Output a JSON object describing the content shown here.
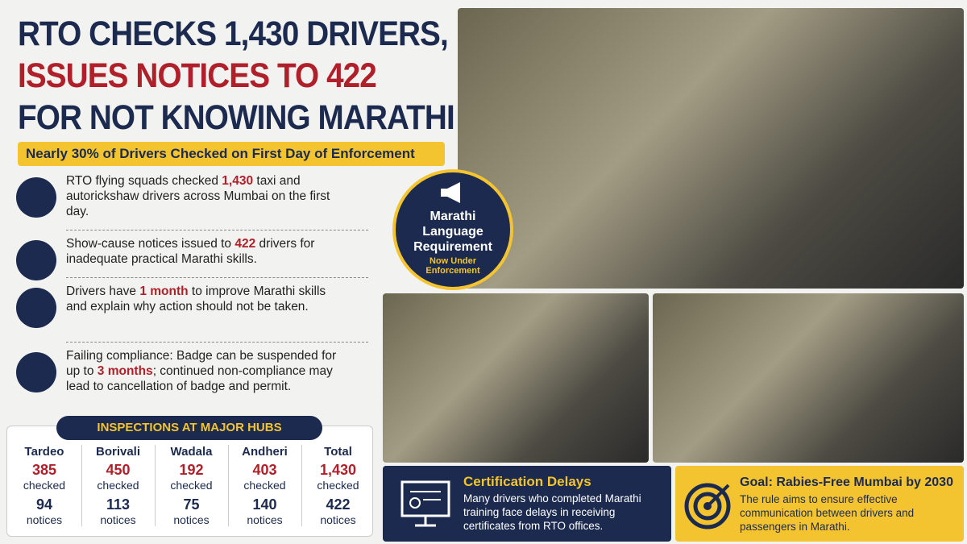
{
  "header": {
    "title_lines": [
      "RTO CHECKS 1,430 DRIVERS,",
      "ISSUES NOTICES TO 422",
      "FOR NOT KNOWING MARATHI"
    ],
    "subtitle": "Nearly 30% of Drivers Checked on First Day of Enforcement"
  },
  "points": [
    {
      "before": "RTO flying squads checked ",
      "highlight": "1,430",
      "after": " taxi and autorickshaw drivers across Mumbai on the first day."
    },
    {
      "before": "Show-cause notices issued to ",
      "highlight": "422",
      "after": " drivers for inadequate practical Marathi skills."
    },
    {
      "before": "Drivers have ",
      "highlight": "1 month",
      "after": " to improve Marathi skills and explain why action should not be taken."
    },
    {
      "before": "Failing compliance: Badge can be suspended for up to ",
      "highlight": "3 months",
      "after": "; continued non-compliance may lead to cancellation of badge and permit."
    }
  ],
  "badge": {
    "title": "Marathi Language Requirement",
    "subtitle": "Now Under Enforcement"
  },
  "hubs": {
    "title": "INSPECTIONS AT MAJOR HUBS",
    "items": [
      {
        "name": "Tardeo",
        "checked": "385",
        "checked_label": "checked",
        "notices": "94",
        "notices_label": "notices"
      },
      {
        "name": "Borivali",
        "checked": "450",
        "checked_label": "checked",
        "notices": "113",
        "notices_label": "notices"
      },
      {
        "name": "Wadala",
        "checked": "192",
        "checked_label": "checked",
        "notices": "75",
        "notices_label": "notices"
      },
      {
        "name": "Andheri",
        "checked": "403",
        "checked_label": "checked",
        "notices": "140",
        "notices_label": "notices"
      },
      {
        "name": "Total",
        "checked": "1,430",
        "checked_label": "checked",
        "notices": "422",
        "notices_label": "notices"
      }
    ]
  },
  "cards": {
    "certification": {
      "title": "Certification Delays",
      "text": "Many drivers who completed Marathi training face delays in receiving certificates from RTO offices."
    },
    "goal": {
      "title": "Goal: Rabies-Free Mumbai by 2030",
      "text": "The rule aims to ensure effective communication between drivers and passengers in Marathi."
    }
  }
}
